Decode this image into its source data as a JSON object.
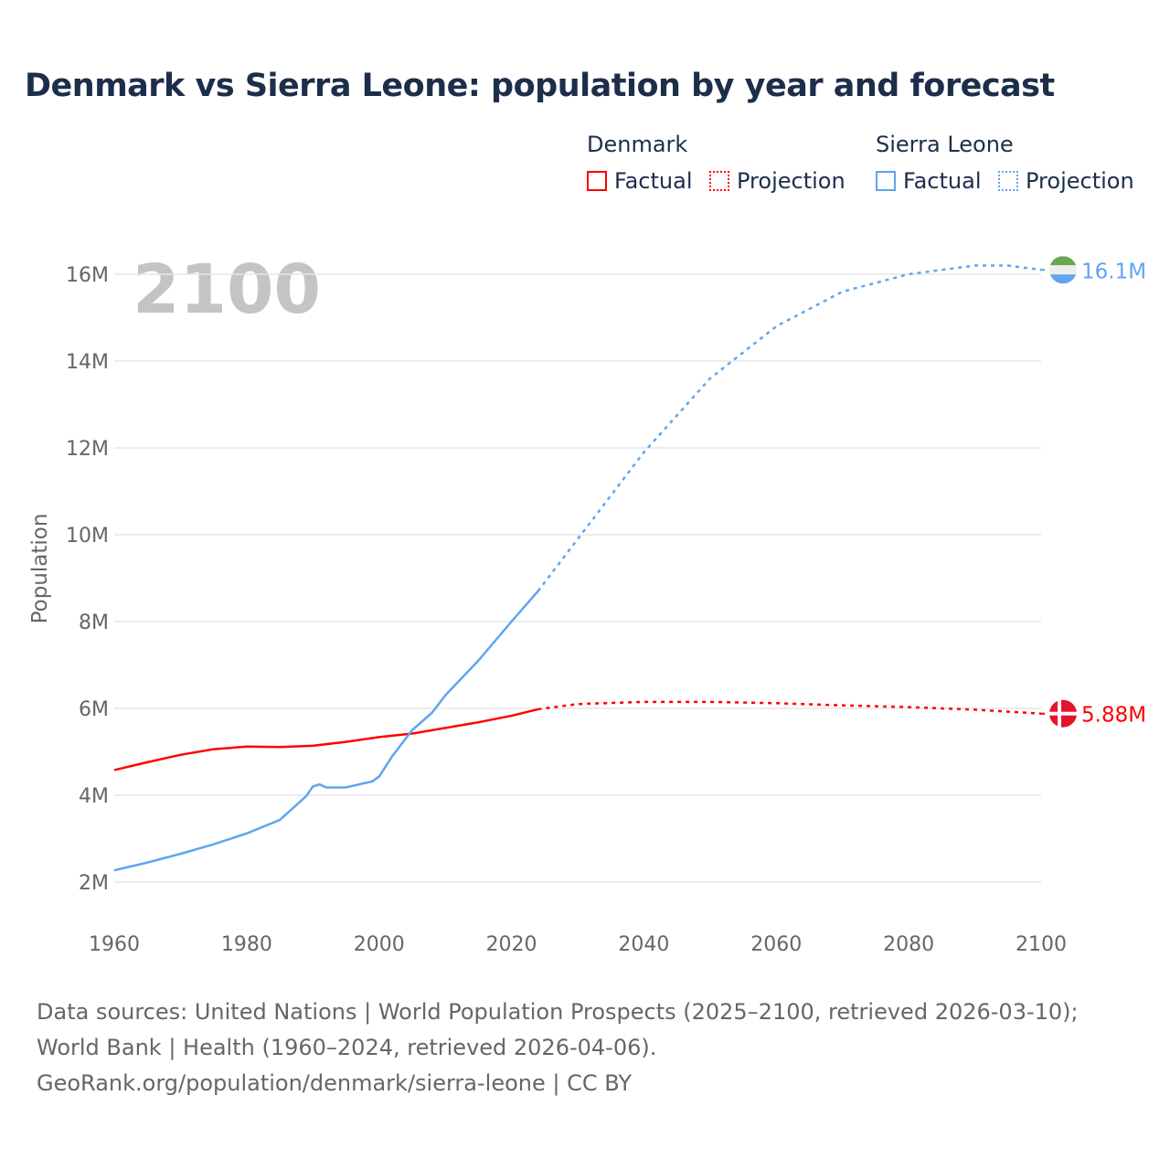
{
  "chart_data": {
    "type": "line",
    "title": "Denmark vs Sierra Leone: population by year and forecast",
    "xlabel": "",
    "ylabel": "Population",
    "xlim": [
      1960,
      2100
    ],
    "ylim": [
      2000000,
      16000000
    ],
    "x_ticks": [
      "1960",
      "1980",
      "2000",
      "2020",
      "2040",
      "2060",
      "2080",
      "2100"
    ],
    "y_ticks": [
      "2M",
      "4M",
      "6M",
      "8M",
      "10M",
      "12M",
      "14M",
      "16M"
    ],
    "year_watermark": "2100",
    "legend": {
      "placement": "top-right",
      "groups": [
        {
          "name": "Denmark",
          "factual": "Factual",
          "projection": "Projection"
        },
        {
          "name": "Sierra Leone",
          "factual": "Factual",
          "projection": "Projection"
        }
      ]
    },
    "series": [
      {
        "name": "Denmark",
        "color": "#ff0000",
        "end_label": "5.88M",
        "factual": {
          "x": [
            1960,
            1965,
            1970,
            1975,
            1980,
            1985,
            1990,
            1995,
            2000,
            2005,
            2010,
            2015,
            2020,
            2024
          ],
          "y": [
            4.58,
            4.76,
            4.93,
            5.06,
            5.12,
            5.11,
            5.14,
            5.23,
            5.34,
            5.42,
            5.55,
            5.68,
            5.83,
            5.98
          ]
        },
        "projection": {
          "x": [
            2024,
            2030,
            2040,
            2050,
            2060,
            2070,
            2080,
            2090,
            2100
          ],
          "y": [
            5.98,
            6.1,
            6.15,
            6.15,
            6.12,
            6.07,
            6.03,
            5.97,
            5.88
          ]
        }
      },
      {
        "name": "Sierra Leone",
        "color": "#5fa5ef",
        "end_label": "16.1M",
        "factual": {
          "x": [
            1960,
            1965,
            1970,
            1975,
            1980,
            1985,
            1989,
            1990,
            1991,
            1992,
            1995,
            1997,
            1999,
            2000,
            2002,
            2004,
            2005,
            2008,
            2010,
            2015,
            2020,
            2024
          ],
          "y": [
            2.27,
            2.45,
            2.65,
            2.87,
            3.12,
            3.43,
            3.98,
            4.2,
            4.25,
            4.18,
            4.18,
            4.25,
            4.32,
            4.43,
            4.9,
            5.3,
            5.5,
            5.9,
            6.3,
            7.1,
            8.0,
            8.7
          ]
        },
        "projection": {
          "x": [
            2024,
            2030,
            2040,
            2050,
            2060,
            2070,
            2080,
            2090,
            2095,
            2100
          ],
          "y": [
            8.7,
            9.9,
            11.9,
            13.6,
            14.8,
            15.6,
            16.0,
            16.2,
            16.2,
            16.1
          ]
        }
      }
    ]
  },
  "footer": {
    "sources": "Data sources: United Nations | World Population Prospects (2025–2100, retrieved 2026-03-10); World Bank | Health (1960–2024, retrieved 2026-04-06).",
    "credit": "GeoRank.org/population/denmark/sierra-leone | CC BY"
  }
}
